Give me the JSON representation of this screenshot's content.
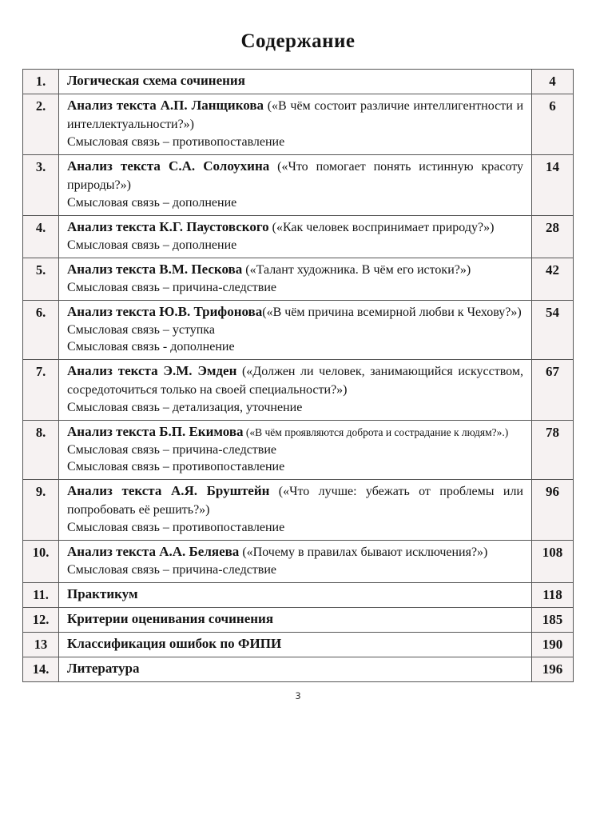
{
  "doc": {
    "title": "Содержание",
    "footer_page": "3"
  },
  "colors": {
    "shade": "#f6f2f2",
    "border": "#565656",
    "text": "#141414",
    "paper": "#ffffff"
  },
  "toc": {
    "rows": [
      {
        "num": "1.",
        "title": "Логическая схема сочинения",
        "paren": "",
        "link1": "",
        "link2": "",
        "page": "4"
      },
      {
        "num": "2.",
        "title": "Анализ текста А.П. Ланщикова",
        "paren": " («В чём состоит различие интеллигентности и интеллектуальности?»)",
        "link1": "Смысловая связь – противопоставление",
        "link2": "",
        "page": "6"
      },
      {
        "num": "3.",
        "title": "Анализ текста С.А. Солоухина",
        "paren": " («Что помогает понять истинную красоту природы?»)",
        "link1": "Смысловая связь – дополнение",
        "link2": "",
        "page": "14"
      },
      {
        "num": "4.",
        "title": "Анализ текста К.Г. Паустовского",
        "paren": " («Как человек воспринимает природу?»)",
        "link1": "Смысловая связь – дополнение",
        "link2": "",
        "page": "28"
      },
      {
        "num": "5.",
        "title": "Анализ текста В.М. Пескова",
        "paren": " («Талант художника. В чём его истоки?»)",
        "link1": "Смысловая связь – причина-следствие",
        "link2": "",
        "page": "42"
      },
      {
        "num": "6.",
        "title": "Анализ текста Ю.В. Трифонова",
        "paren": "(«В чём причина всемирной любви к Чехову?»)",
        "link1": "Смысловая связь – уступка",
        "link2": "Смысловая связь - дополнение",
        "page": "54"
      },
      {
        "num": "7.",
        "title": "Анализ текста Э.М. Эмден",
        "paren": " («Должен ли человек, занимающийся искусством, сосредоточиться только на своей специальности?»)",
        "link1": "Смысловая связь – детализация, уточнение",
        "link2": "",
        "page": "67"
      },
      {
        "num": "8.",
        "title": "Анализ текста Б.П. Екимова",
        "paren": " («В чём проявляются доброта и сострадание к людям?».)",
        "link1": "Смысловая связь – причина-следствие",
        "link2": "Смысловая связь – противопоставление",
        "page": "78"
      },
      {
        "num": "9.",
        "title": "Анализ текста А.Я. Бруштейн",
        "paren": " («Что лучше: убежать от проблемы или попробовать её решить?»)",
        "link1": "Смысловая связь – противопоставление",
        "link2": "",
        "page": "96"
      },
      {
        "num": "10.",
        "title": "Анализ текста А.А. Беляева",
        "paren": " («Почему в правилах бывают исключения?»)",
        "link1": "Смысловая связь – причина-следствие",
        "link2": "",
        "page": "108"
      },
      {
        "num": "11.",
        "title": "Практикум",
        "paren": "",
        "link1": "",
        "link2": "",
        "page": "118"
      },
      {
        "num": "12.",
        "title": "Критерии оценивания сочинения",
        "paren": "",
        "link1": "",
        "link2": "",
        "page": "185"
      },
      {
        "num": "13",
        "title": "Классификация ошибок по ФИПИ",
        "paren": "",
        "link1": "",
        "link2": "",
        "page": "190"
      },
      {
        "num": "14.",
        "title": "Литература",
        "paren": "",
        "link1": "",
        "link2": "",
        "page": "196"
      }
    ]
  }
}
